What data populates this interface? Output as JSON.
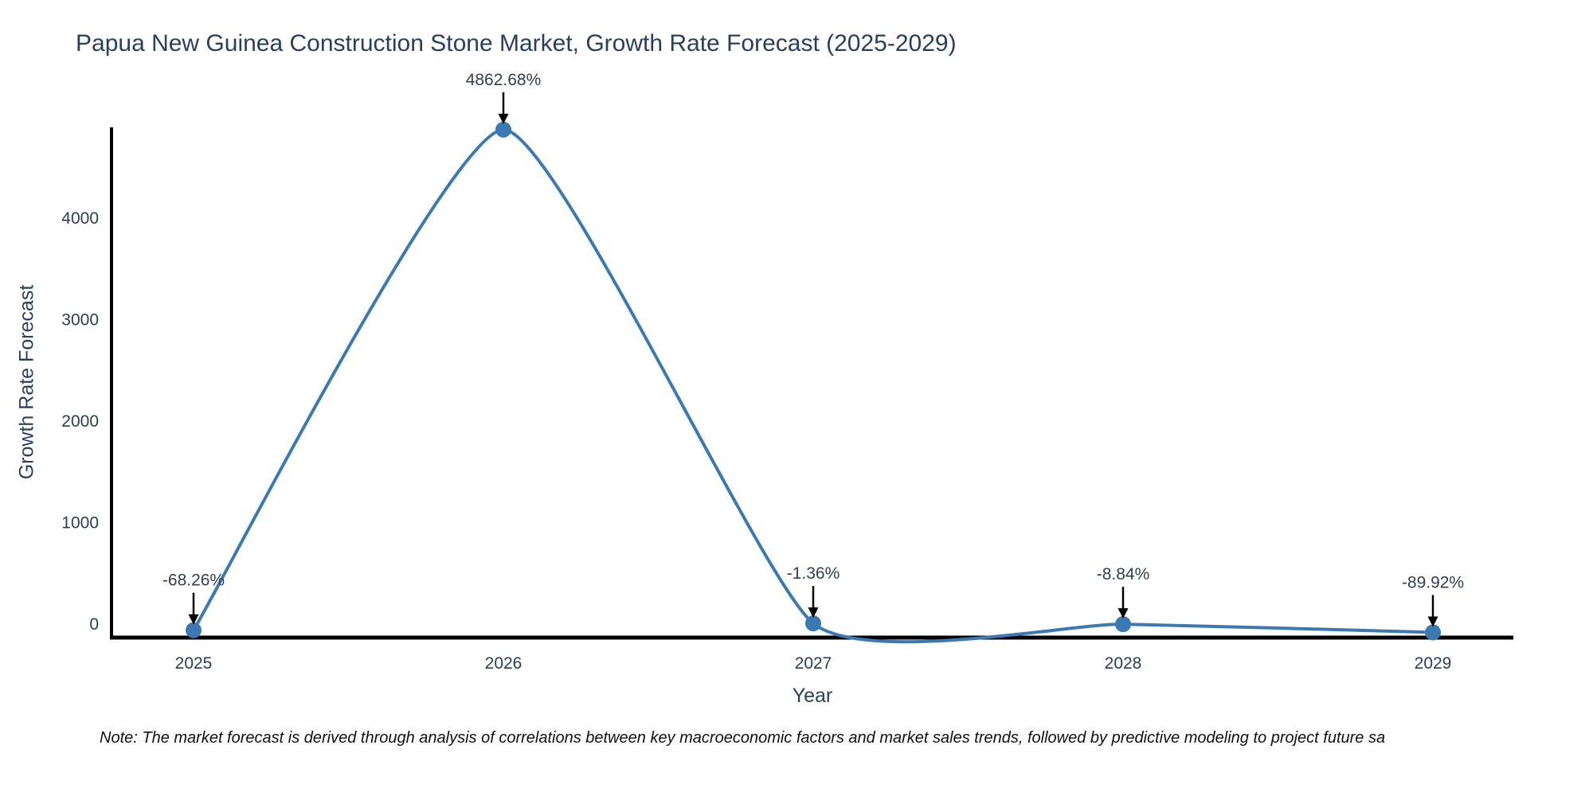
{
  "header": {
    "title": "Papua New Guinea Construction Stone Market, Growth Rate Forecast (2025-2029)"
  },
  "chart_data": {
    "type": "line",
    "line_shape": "spline",
    "title": "Papua New Guinea Construction Stone Market, Growth Rate Forecast (2025-2029)",
    "xlabel": "Year",
    "ylabel": "Growth Rate Forecast",
    "x": [
      2025,
      2026,
      2027,
      2028,
      2029
    ],
    "x_tick_labels": [
      "2025",
      "2026",
      "2027",
      "2028",
      "2029"
    ],
    "values": [
      -68.26,
      4862.68,
      -1.36,
      -8.84,
      -89.92
    ],
    "point_labels": [
      "-68.26%",
      "4862.68%",
      "-1.36%",
      "-8.84%",
      "-89.92%"
    ],
    "y_ticks": [
      0,
      1000,
      2000,
      3000,
      4000
    ],
    "ylim": [
      -150,
      4890
    ],
    "grid": "off",
    "legend": "none",
    "line_color": "#3c79b2",
    "marker_color": "#3c79b2",
    "axis_color": "#000000",
    "arrow_color": "#000000",
    "text_color": "#2a3f5f"
  },
  "footer": {
    "note": "Note: The market forecast is derived through analysis of correlations between key macroeconomic factors and market sales trends, followed by predictive modeling to project future sa"
  }
}
